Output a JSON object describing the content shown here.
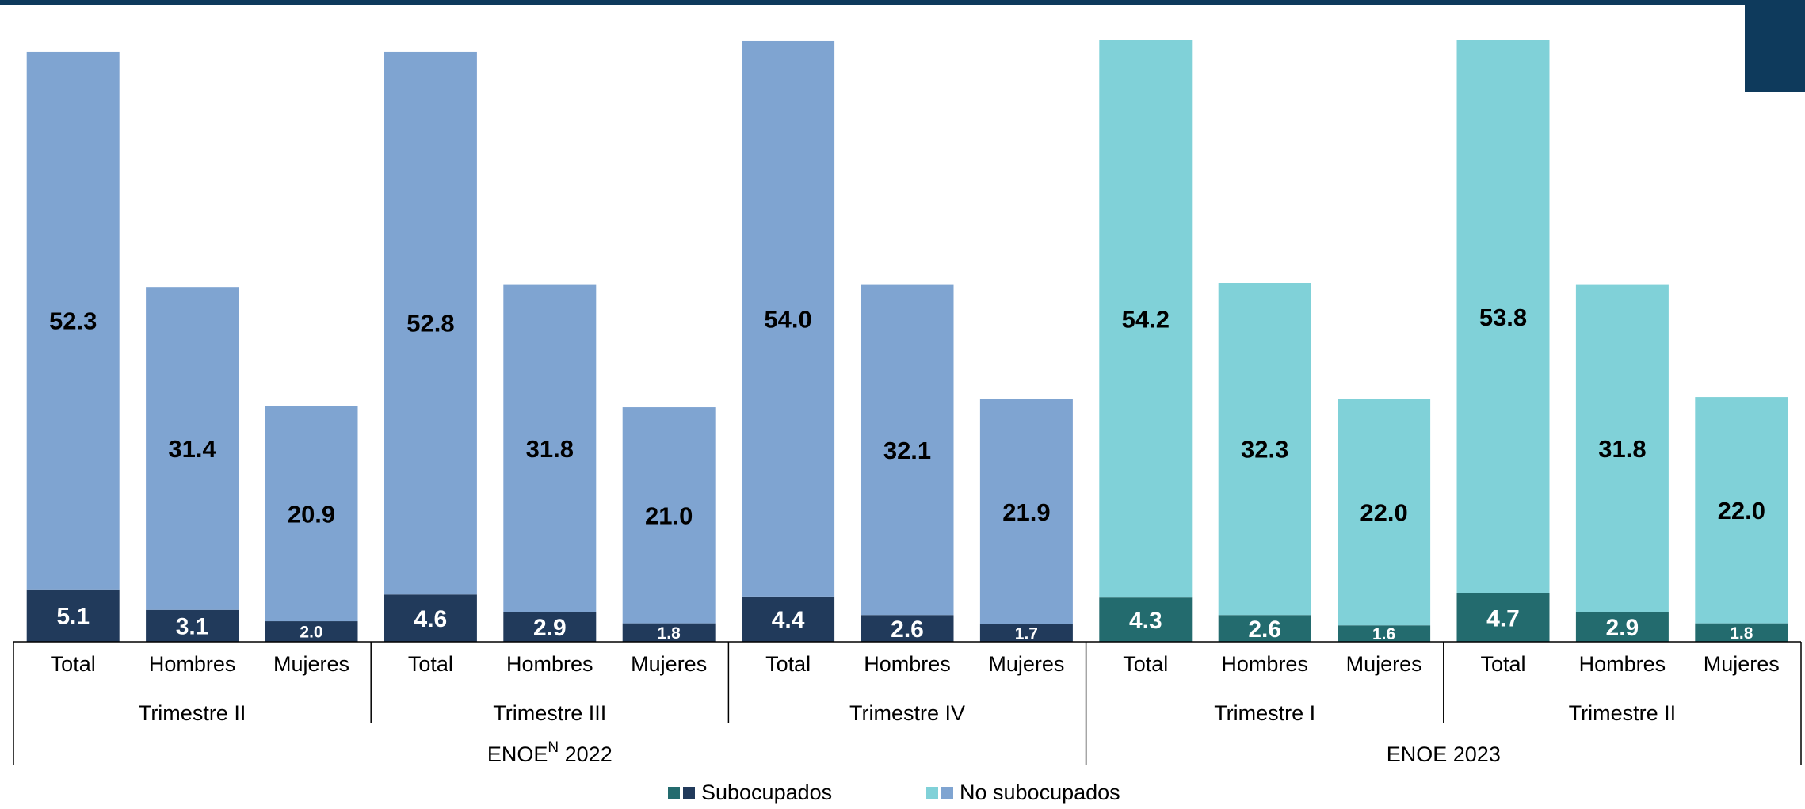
{
  "chart_data": {
    "type": "bar",
    "stacked": true,
    "title": "",
    "xlabel": "",
    "ylabel": "",
    "groups": [
      {
        "label": "ENOE",
        "superscript": "N",
        "year": "2022",
        "quarters": [
          {
            "label": "Trimestre II",
            "bars": [
              {
                "category": "Total",
                "subocupados": 5.1,
                "no_subocupados": 52.3
              },
              {
                "category": "Hombres",
                "subocupados": 3.1,
                "no_subocupados": 31.4
              },
              {
                "category": "Mujeres",
                "subocupados": 2.0,
                "no_subocupados": 20.9
              }
            ]
          },
          {
            "label": "Trimestre III",
            "bars": [
              {
                "category": "Total",
                "subocupados": 4.6,
                "no_subocupados": 52.8
              },
              {
                "category": "Hombres",
                "subocupados": 2.9,
                "no_subocupados": 31.8
              },
              {
                "category": "Mujeres",
                "subocupados": 1.8,
                "no_subocupados": 21.0
              }
            ]
          },
          {
            "label": "Trimestre IV",
            "bars": [
              {
                "category": "Total",
                "subocupados": 4.4,
                "no_subocupados": 54.0
              },
              {
                "category": "Hombres",
                "subocupados": 2.6,
                "no_subocupados": 32.1
              },
              {
                "category": "Mujeres",
                "subocupados": 1.7,
                "no_subocupados": 21.9
              }
            ]
          }
        ]
      },
      {
        "label": "ENOE",
        "superscript": "",
        "year": "2023",
        "quarters": [
          {
            "label": "Trimestre I",
            "bars": [
              {
                "category": "Total",
                "subocupados": 4.3,
                "no_subocupados": 54.2
              },
              {
                "category": "Hombres",
                "subocupados": 2.6,
                "no_subocupados": 32.3
              },
              {
                "category": "Mujeres",
                "subocupados": 1.6,
                "no_subocupados": 22.0
              }
            ]
          },
          {
            "label": "Trimestre II",
            "bars": [
              {
                "category": "Total",
                "subocupados": 4.7,
                "no_subocupados": 53.8
              },
              {
                "category": "Hombres",
                "subocupados": 2.9,
                "no_subocupados": 31.8
              },
              {
                "category": "Mujeres",
                "subocupados": 1.8,
                "no_subocupados": 22.0
              }
            ]
          }
        ]
      }
    ],
    "colors": {
      "2022": {
        "subocupados": "#213a5b",
        "no_subocupados": "#7fa4d1"
      },
      "2023": {
        "subocupados": "#236b6e",
        "no_subocupados": "#80d1d8"
      }
    },
    "legend": {
      "position": "bottom-center",
      "items": [
        {
          "label": "Subocupados",
          "swatches": [
            "#236b6e",
            "#213a5b"
          ]
        },
        {
          "label": "No subocupados",
          "swatches": [
            "#80d1d8",
            "#7fa4d1"
          ]
        }
      ]
    }
  },
  "decor": {
    "topbar": "#0e3a5c"
  }
}
